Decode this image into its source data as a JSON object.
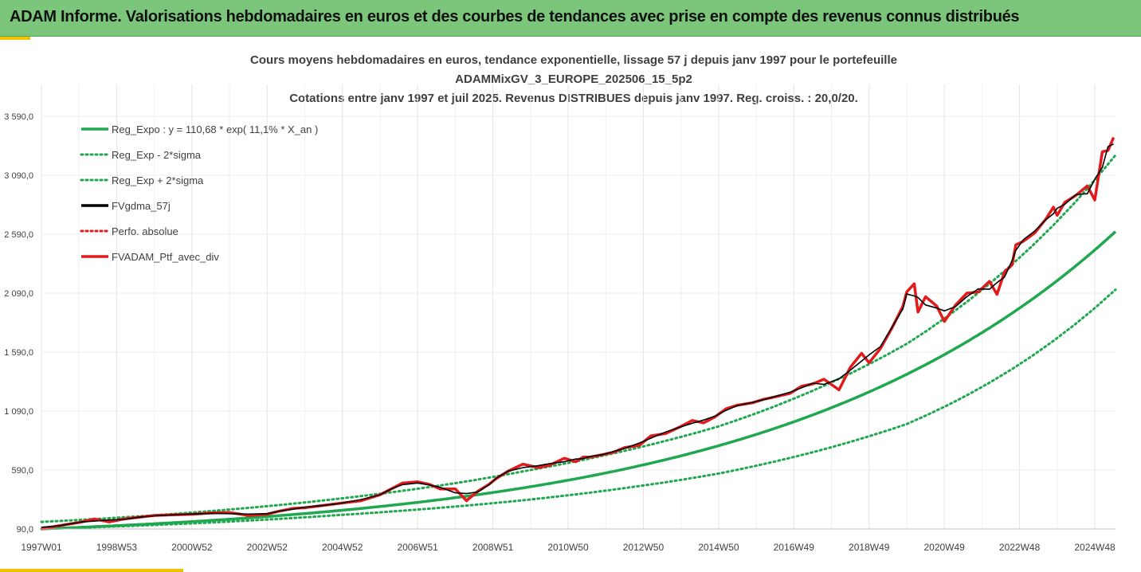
{
  "header": {
    "title": "ADAM Informe. Valorisations hebdomadaires en euros et des courbes de tendances avec prise en compte des revenus connus distribués"
  },
  "colors": {
    "header_bg": "#7bc67b",
    "accent": "#f2c200",
    "reg": "#1fa84f",
    "mean": "#000000",
    "perf": "#e31a1c"
  },
  "chart_data": {
    "type": "line",
    "title_lines": [
      "Cours moyens hebdomadaires  en euros, tendance exponentielle, lissage 57 j depuis janv 1997 pour le portefeuille",
      "ADAMMixGV_3_EUROPE_202506_15_5p2",
      "Cotations  entre janv 1997 et juil 2025. Revenus DISTRIBUES depuis janv 1997. Reg. croiss. : 20,0/20."
    ],
    "y_ticks": [
      "90,0",
      "590,0",
      "1 090,0",
      "1 590,0",
      "2 090,0",
      "2 590,0",
      "3 090,0",
      "3 590,0"
    ],
    "ylim": [
      90,
      3590
    ],
    "x_ticks": [
      "1997W01",
      "1998W53",
      "2000W52",
      "2002W52",
      "2004W52",
      "2006W51",
      "2008W51",
      "2010W50",
      "2012W50",
      "2014W50",
      "2016W49",
      "2018W49",
      "2020W49",
      "2022W48",
      "2024W48"
    ],
    "x_tick_years": [
      1997.0,
      1999.0,
      2001.0,
      2003.0,
      2005.0,
      2007.0,
      2009.0,
      2011.0,
      2013.0,
      2015.0,
      2017.0,
      2019.0,
      2021.0,
      2023.0,
      2025.0
    ],
    "xlim": [
      1997.0,
      2025.55
    ],
    "grid": "vertical",
    "legend": [
      {
        "label": "Reg_Expo : y = 110,68 * exp( 11,1% *  X_an )",
        "style": "solid-green"
      },
      {
        "label": "Reg_Exp - 2*sigma",
        "style": "dotted-green"
      },
      {
        "label": "Reg_Exp + 2*sigma",
        "style": "dotted-green"
      },
      {
        "label": "FVgdma_57j",
        "style": "solid-black"
      },
      {
        "label": "Perfo. absolue",
        "style": "dotted-red"
      },
      {
        "label": "FVADAM_Ptf_avec_div",
        "style": "solid-red"
      }
    ],
    "legend_position": "top-left",
    "regression": {
      "a": 110.68,
      "rate": 0.111
    },
    "bands": {
      "lower": [
        [
          1997.0,
          90
        ],
        [
          2005,
          210
        ],
        [
          2010,
          340
        ],
        [
          2015,
          560
        ],
        [
          2020,
          980
        ],
        [
          2025.55,
          2120
        ]
      ],
      "upper": [
        [
          1997.0,
          150
        ],
        [
          2005,
          350
        ],
        [
          2010,
          590
        ],
        [
          2015,
          960
        ],
        [
          2020,
          1660
        ],
        [
          2025.55,
          3260
        ]
      ]
    },
    "series": [
      {
        "name": "FVADAM_Ptf_avec_div",
        "x": [
          1997.0,
          1997.5,
          1998.0,
          1998.4,
          1998.8,
          1999.2,
          1999.6,
          2000.0,
          2000.5,
          2001.0,
          2001.5,
          2002.0,
          2002.5,
          2003.0,
          2003.3,
          2003.7,
          2004.0,
          2004.5,
          2005.0,
          2005.5,
          2006.0,
          2006.3,
          2006.6,
          2007.0,
          2007.3,
          2007.6,
          2008.0,
          2008.3,
          2008.6,
          2008.9,
          2009.1,
          2009.4,
          2009.8,
          2010.2,
          2010.5,
          2010.9,
          2011.2,
          2011.4,
          2011.6,
          2011.9,
          2012.2,
          2012.5,
          2012.9,
          2013.2,
          2013.6,
          2014.0,
          2014.3,
          2014.6,
          2014.9,
          2015.2,
          2015.5,
          2015.9,
          2016.2,
          2016.5,
          2016.9,
          2017.2,
          2017.5,
          2017.8,
          2018.2,
          2018.5,
          2018.8,
          2019.0,
          2019.3,
          2019.6,
          2019.9,
          2020.0,
          2020.2,
          2020.3,
          2020.5,
          2020.8,
          2021.0,
          2021.3,
          2021.6,
          2021.9,
          2022.2,
          2022.4,
          2022.6,
          2022.8,
          2022.9,
          2023.1,
          2023.4,
          2023.7,
          2023.9,
          2024.0,
          2024.2,
          2024.5,
          2024.8,
          2025.0,
          2025.2,
          2025.35,
          2025.5
        ],
        "y": [
          90,
          120,
          145,
          175,
          150,
          175,
          190,
          205,
          210,
          215,
          225,
          230,
          205,
          215,
          240,
          265,
          270,
          290,
          310,
          330,
          380,
          430,
          480,
          490,
          470,
          430,
          430,
          330,
          410,
          470,
          520,
          580,
          640,
          610,
          630,
          690,
          660,
          700,
          700,
          720,
          740,
          780,
          800,
          880,
          900,
          960,
          1010,
          990,
          1040,
          1110,
          1140,
          1160,
          1190,
          1210,
          1240,
          1300,
          1320,
          1360,
          1270,
          1460,
          1580,
          1500,
          1620,
          1790,
          1980,
          2100,
          2170,
          1930,
          2060,
          1980,
          1850,
          1990,
          2090,
          2100,
          2190,
          2080,
          2270,
          2330,
          2500,
          2530,
          2600,
          2720,
          2820,
          2750,
          2860,
          2920,
          3000,
          2880,
          3290,
          3300,
          3410
        ]
      }
    ]
  }
}
